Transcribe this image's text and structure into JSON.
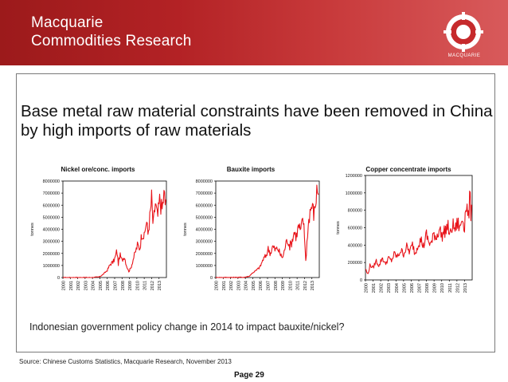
{
  "header": {
    "brand_line1": "Macquarie",
    "brand_line2": "Commodities Research",
    "logo_label": "MACQUARIE",
    "banner_color": "#b32225"
  },
  "title": "Base metal raw material constraints have been removed in China by high imports of raw materials",
  "note": "Indonesian government policy change  in 2014 to impact bauxite/nickel?",
  "source": "Source: Chinese Customs Statistics, Macquarie Research, November 2013",
  "page_number": "Page 29",
  "chart_data": [
    {
      "type": "line",
      "title": "Nickel ore/conc. imports",
      "xlabel": "",
      "ylabel": "tonnes",
      "ylim": [
        0,
        8000000
      ],
      "yticks": [
        0,
        1000000,
        2000000,
        3000000,
        4000000,
        5000000,
        6000000,
        7000000,
        8000000
      ],
      "ytick_labels": [
        "0",
        "1000000",
        "2000000",
        "3000000",
        "4000000",
        "5000000",
        "6000000",
        "7000000",
        "8000000"
      ],
      "xticks": [
        "2000",
        "2001",
        "2002",
        "2003",
        "2004",
        "2005",
        "2006",
        "2007",
        "2008",
        "2009",
        "2010",
        "2011",
        "2012",
        "2013"
      ],
      "series": [
        {
          "name": "Nickel ore/conc. imports",
          "color": "#e8141a",
          "anchors": [
            [
              2000.0,
              0
            ],
            [
              2004.0,
              5000
            ],
            [
              2004.9,
              50000
            ],
            [
              2005.3,
              200000
            ],
            [
              2005.6,
              350000
            ],
            [
              2006.0,
              600000
            ],
            [
              2006.4,
              1100000
            ],
            [
              2006.8,
              1300000
            ],
            [
              2007.1,
              1700000
            ],
            [
              2007.3,
              2250000
            ],
            [
              2007.5,
              1100000
            ],
            [
              2007.7,
              1900000
            ],
            [
              2008.0,
              1400000
            ],
            [
              2008.3,
              1800000
            ],
            [
              2008.6,
              1000000
            ],
            [
              2008.9,
              500000
            ],
            [
              2009.2,
              800000
            ],
            [
              2009.5,
              1500000
            ],
            [
              2009.8,
              2100000
            ],
            [
              2010.1,
              2700000
            ],
            [
              2010.4,
              2400000
            ],
            [
              2010.7,
              3800000
            ],
            [
              2011.0,
              3300000
            ],
            [
              2011.3,
              4800000
            ],
            [
              2011.5,
              3600000
            ],
            [
              2011.8,
              5200000
            ],
            [
              2012.0,
              6600000
            ],
            [
              2012.2,
              4200000
            ],
            [
              2012.5,
              6200000
            ],
            [
              2012.8,
              4900000
            ],
            [
              2013.1,
              6500000
            ],
            [
              2013.4,
              5600000
            ],
            [
              2013.7,
              7000000
            ],
            [
              2013.85,
              6000000
            ],
            [
              2013.95,
              7000000
            ]
          ]
        }
      ]
    },
    {
      "type": "line",
      "title": "Bauxite imports",
      "xlabel": "",
      "ylabel": "tonnes",
      "ylim": [
        0,
        8000000
      ],
      "yticks": [
        0,
        1000000,
        2000000,
        3000000,
        4000000,
        5000000,
        6000000,
        7000000,
        8000000
      ],
      "ytick_labels": [
        "0",
        "1000000",
        "2000000",
        "3000000",
        "4000000",
        "5000000",
        "6000000",
        "7000000",
        "8000000"
      ],
      "xticks": [
        "2000",
        "2001",
        "2002",
        "2003",
        "2004",
        "2005",
        "2006",
        "2007",
        "2008",
        "2009",
        "2010",
        "2011",
        "2012",
        "2013"
      ],
      "series": [
        {
          "name": "Bauxite imports",
          "color": "#e8141a",
          "anchors": [
            [
              2000.0,
              0
            ],
            [
              2003.8,
              20000
            ],
            [
              2004.5,
              100000
            ],
            [
              2005.0,
              400000
            ],
            [
              2005.5,
              600000
            ],
            [
              2006.0,
              900000
            ],
            [
              2006.4,
              1500000
            ],
            [
              2006.8,
              1800000
            ],
            [
              2007.1,
              2400000
            ],
            [
              2007.4,
              2000000
            ],
            [
              2007.7,
              2600000
            ],
            [
              2008.0,
              2300000
            ],
            [
              2008.4,
              2400000
            ],
            [
              2008.8,
              1800000
            ],
            [
              2009.1,
              1700000
            ],
            [
              2009.4,
              2600000
            ],
            [
              2009.7,
              3200000
            ],
            [
              2010.0,
              2600000
            ],
            [
              2010.3,
              3000000
            ],
            [
              2010.6,
              3800000
            ],
            [
              2010.9,
              3400000
            ],
            [
              2011.2,
              4300000
            ],
            [
              2011.5,
              3800000
            ],
            [
              2011.8,
              5000000
            ],
            [
              2012.0,
              3400000
            ],
            [
              2012.2,
              1200000
            ],
            [
              2012.4,
              3700000
            ],
            [
              2012.7,
              5400000
            ],
            [
              2013.0,
              6000000
            ],
            [
              2013.3,
              5200000
            ],
            [
              2013.6,
              6800000
            ],
            [
              2013.8,
              7500000
            ],
            [
              2013.95,
              7200000
            ]
          ]
        }
      ]
    },
    {
      "type": "line",
      "title": "Copper concentrate imports",
      "xlabel": "",
      "ylabel": "tonnes",
      "ylim": [
        0,
        1200000
      ],
      "yticks": [
        0,
        200000,
        400000,
        600000,
        800000,
        1000000,
        1200000
      ],
      "ytick_labels": [
        "0",
        "200000",
        "400000",
        "600000",
        "800000",
        "1000000",
        "1200000"
      ],
      "xticks": [
        "2000",
        "2001",
        "2002",
        "2003",
        "2004",
        "2005",
        "2006",
        "2007",
        "2008",
        "2009",
        "2010",
        "2011",
        "2012",
        "2013"
      ],
      "series": [
        {
          "name": "Copper concentrate imports",
          "color": "#e8141a",
          "anchors": [
            [
              2000.0,
              130000
            ],
            [
              2000.3,
              60000
            ],
            [
              2000.6,
              170000
            ],
            [
              2001.0,
              140000
            ],
            [
              2001.4,
              220000
            ],
            [
              2001.8,
              160000
            ],
            [
              2002.2,
              260000
            ],
            [
              2002.6,
              180000
            ],
            [
              2003.0,
              250000
            ],
            [
              2003.4,
              220000
            ],
            [
              2003.8,
              300000
            ],
            [
              2004.2,
              260000
            ],
            [
              2004.6,
              340000
            ],
            [
              2005.0,
              300000
            ],
            [
              2005.4,
              380000
            ],
            [
              2005.8,
              320000
            ],
            [
              2006.2,
              410000
            ],
            [
              2006.5,
              300000
            ],
            [
              2006.9,
              420000
            ],
            [
              2007.3,
              460000
            ],
            [
              2007.6,
              380000
            ],
            [
              2008.0,
              520000
            ],
            [
              2008.3,
              430000
            ],
            [
              2008.7,
              420000
            ],
            [
              2009.0,
              540000
            ],
            [
              2009.3,
              480000
            ],
            [
              2009.7,
              600000
            ],
            [
              2010.0,
              500000
            ],
            [
              2010.4,
              560000
            ],
            [
              2010.8,
              620000
            ],
            [
              2011.1,
              500000
            ],
            [
              2011.4,
              630000
            ],
            [
              2011.8,
              580000
            ],
            [
              2012.1,
              660000
            ],
            [
              2012.4,
              580000
            ],
            [
              2012.7,
              720000
            ],
            [
              2013.0,
              620000
            ],
            [
              2013.2,
              900000
            ],
            [
              2013.5,
              700000
            ],
            [
              2013.7,
              950000
            ],
            [
              2013.85,
              760000
            ],
            [
              2013.95,
              1020000
            ]
          ]
        }
      ]
    }
  ]
}
